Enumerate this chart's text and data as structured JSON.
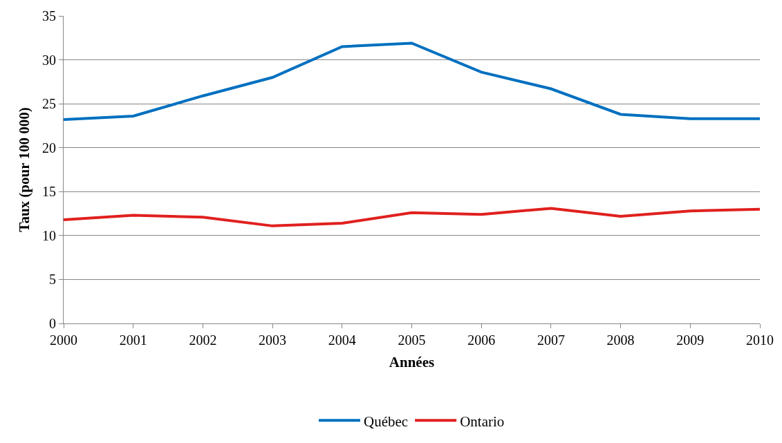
{
  "chart_data": {
    "type": "line",
    "xlabel": "Années",
    "ylabel": "Taux (pour 100 000)",
    "x": [
      2000,
      2001,
      2002,
      2003,
      2004,
      2005,
      2006,
      2007,
      2008,
      2009,
      2010
    ],
    "series": [
      {
        "name": "Québec",
        "color": "#0070c0",
        "values": [
          23.2,
          23.6,
          25.9,
          28.0,
          31.5,
          31.9,
          28.6,
          26.7,
          23.8,
          23.3,
          23.3
        ]
      },
      {
        "name": "Ontario",
        "color": "#e0201e",
        "values": [
          11.8,
          12.3,
          12.1,
          11.1,
          11.4,
          12.6,
          12.4,
          13.1,
          12.2,
          12.8,
          13.0
        ]
      }
    ],
    "xlim": [
      2000,
      2010
    ],
    "xticks": [
      2000,
      2001,
      2002,
      2003,
      2004,
      2005,
      2006,
      2007,
      2008,
      2009,
      2010
    ],
    "ylim": [
      0,
      35
    ],
    "yticks": [
      0,
      5,
      10,
      15,
      20,
      25,
      30,
      35
    ],
    "grid": "y",
    "legend": "bottom",
    "marker": "none",
    "line_style": "solid"
  }
}
